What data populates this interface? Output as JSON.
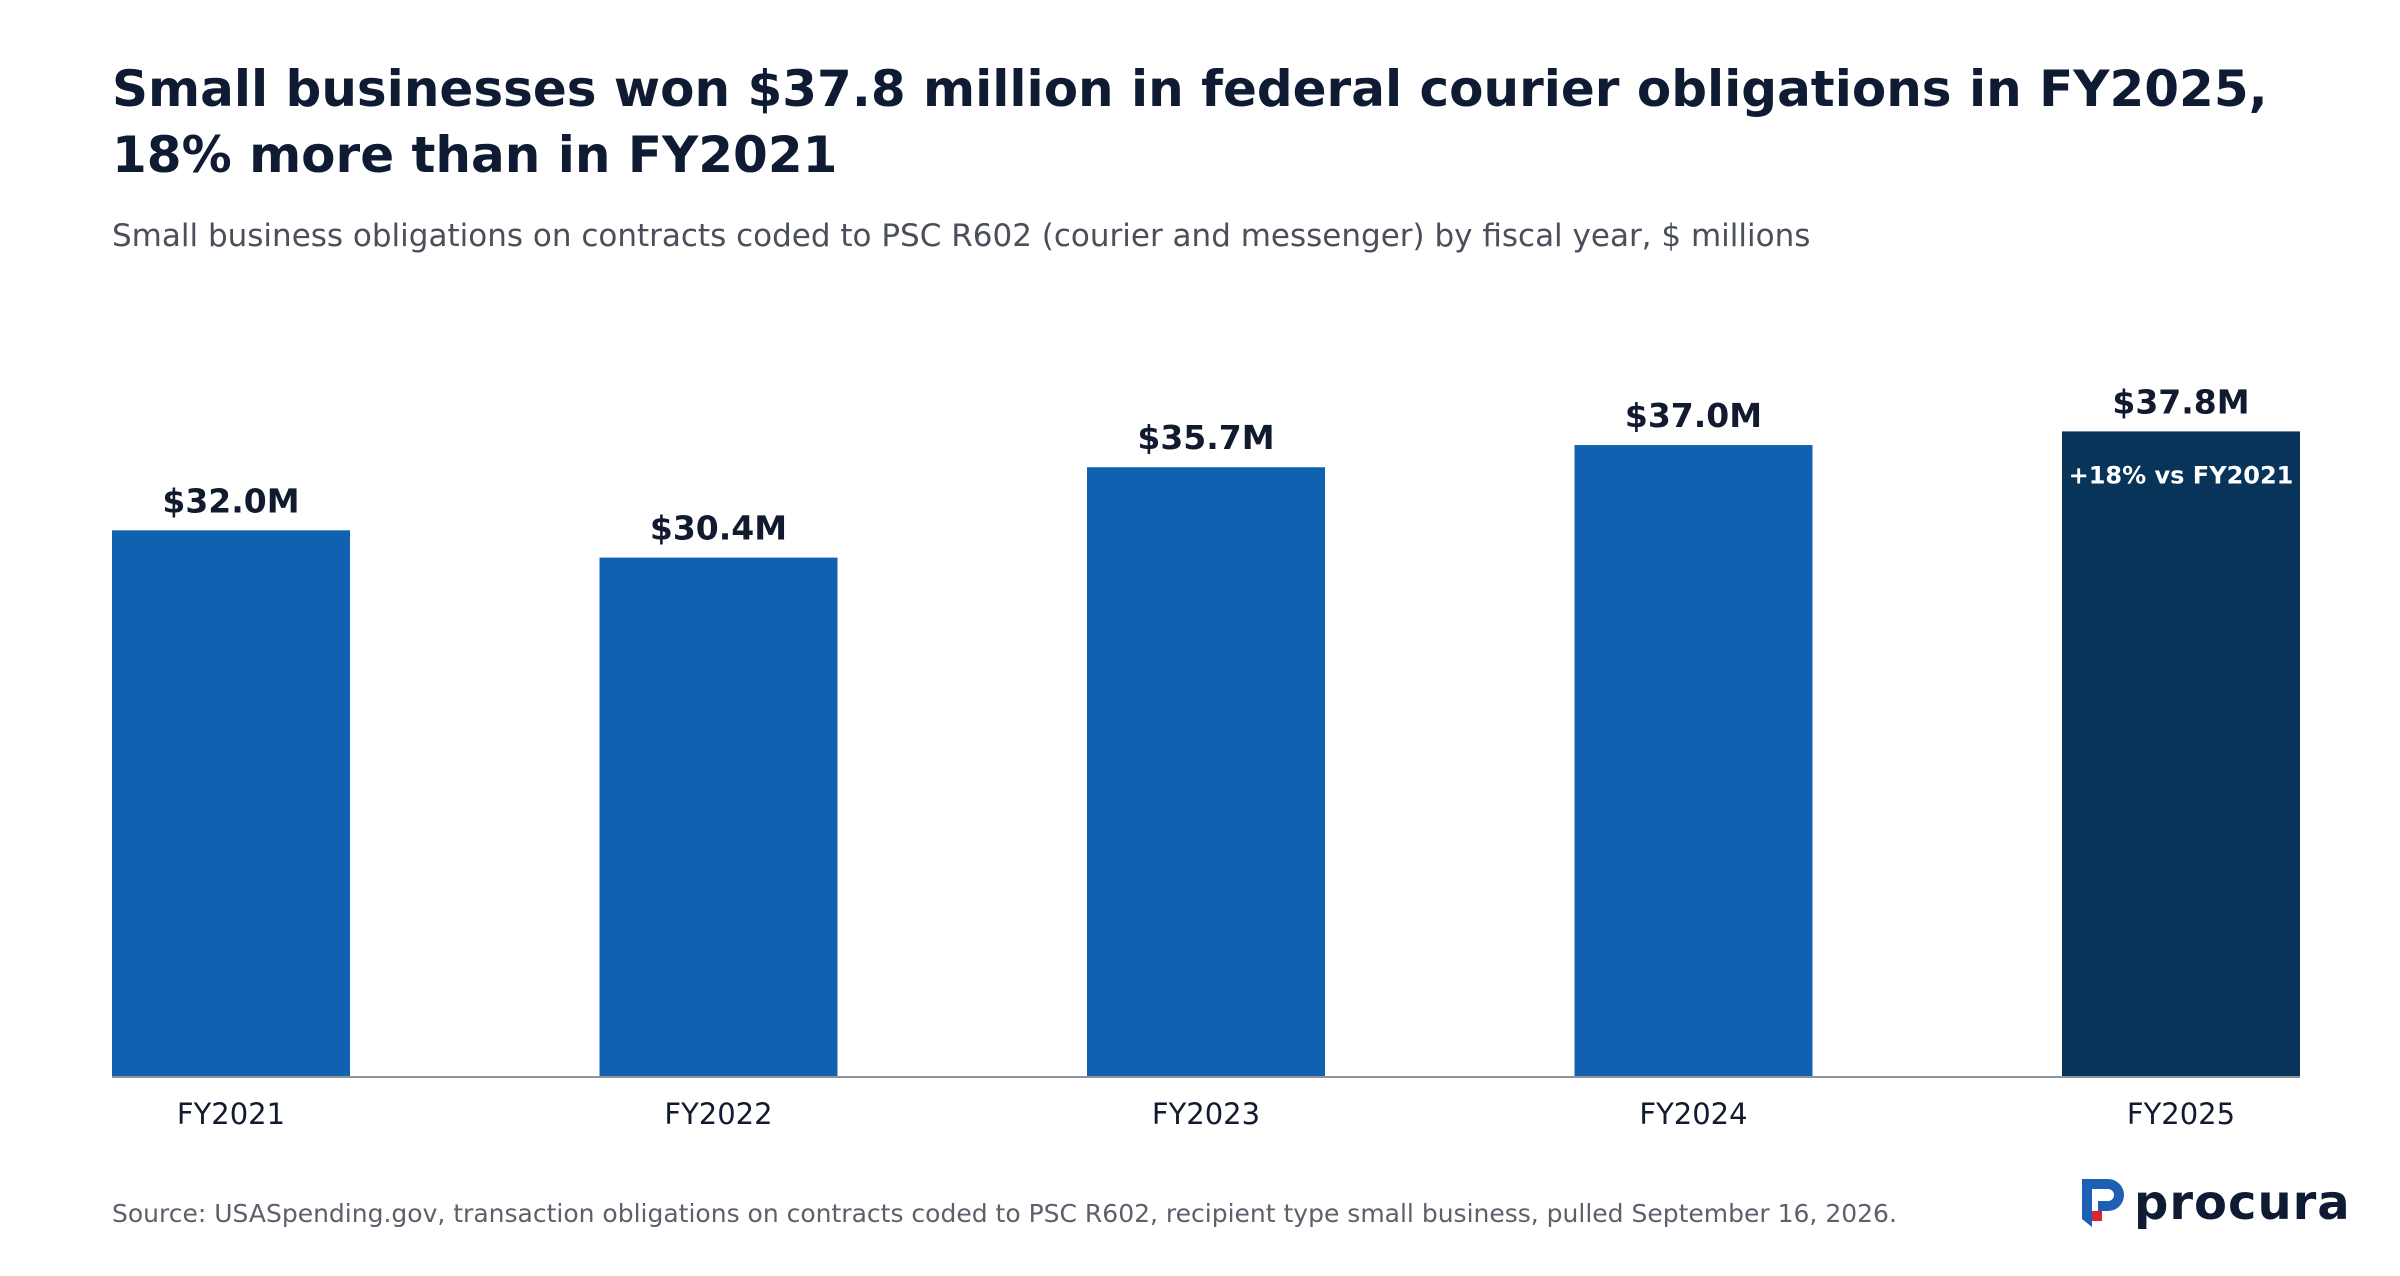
{
  "chart_data": {
    "type": "bar",
    "title": "Small businesses won $37.8 million in federal courier obligations in FY2025, 18% more than in FY2021",
    "subtitle": "Small business obligations on contracts coded to PSC R602 (courier and messenger) by fiscal year, $ millions",
    "categories": [
      "FY2021",
      "FY2022",
      "FY2023",
      "FY2024",
      "FY2025"
    ],
    "values": [
      32.0,
      30.4,
      35.7,
      37.0,
      37.8
    ],
    "data_labels": [
      "$32.0M",
      "$30.4M",
      "$35.7M",
      "$37.0M",
      "$37.8M"
    ],
    "ylim": [
      0,
      38
    ],
    "grid": false,
    "highlight_index": 4,
    "highlight_annotation": "+18% vs FY2021",
    "colors": {
      "bar": "#1062b0",
      "highlight_bar": "#08345a",
      "axis": "#8f949c",
      "label": "#111a2e",
      "annotation": "#ffffff"
    }
  },
  "source": "Source: USASpending.gov, transaction obligations on contracts coded to PSC R602, recipient type small business, pulled September 16, 2026.",
  "logo": {
    "text": "procura",
    "icon": "procura-logo-icon",
    "colors": {
      "blue": "#1d5fb5",
      "red": "#d9262c"
    }
  }
}
